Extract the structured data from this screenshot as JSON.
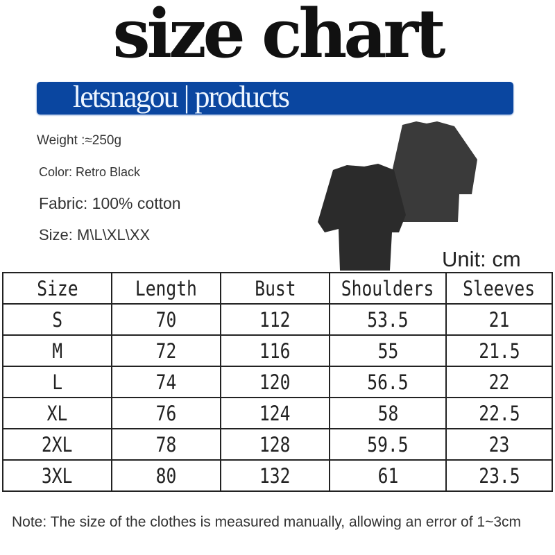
{
  "title": "size chart",
  "banner": {
    "text": "letsnagou | products",
    "color": "#0a46a0"
  },
  "specs": {
    "weight": "Weight :≈250g",
    "color": "Color: Retro Black",
    "fabric": "Fabric: 100% cotton",
    "size": "Size: M\\L\\XL\\XX"
  },
  "unit": "Unit: cm",
  "table": {
    "headers": [
      "Size",
      "Length",
      "Bust",
      "Shoulders",
      "Sleeves"
    ],
    "rows": [
      [
        "S",
        "70",
        "112",
        "53.5",
        "21"
      ],
      [
        "M",
        "72",
        "116",
        "55",
        "21.5"
      ],
      [
        "L",
        "74",
        "120",
        "56.5",
        "22"
      ],
      [
        "XL",
        "76",
        "124",
        "58",
        "22.5"
      ],
      [
        "2XL",
        "78",
        "128",
        "59.5",
        "23"
      ],
      [
        "3XL",
        "80",
        "132",
        "61",
        "23.5"
      ]
    ]
  },
  "note": "Note: The size of the clothes is measured manually, allowing an error of 1~3cm"
}
